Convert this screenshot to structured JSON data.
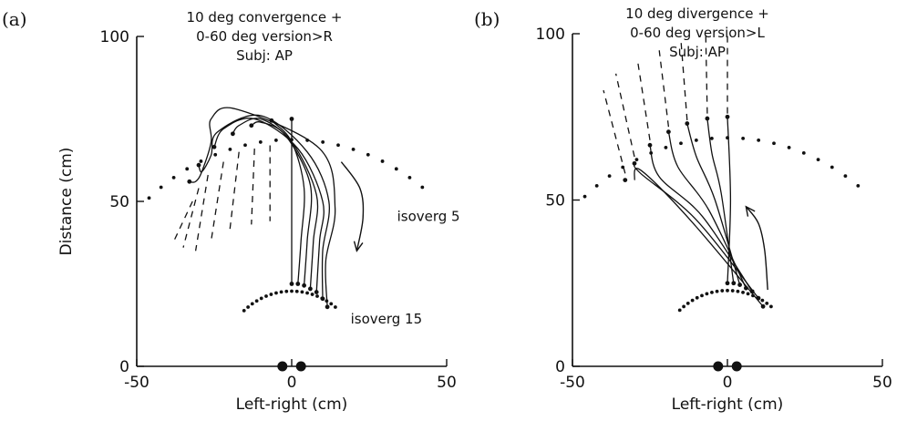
{
  "chart_data": [
    {
      "type": "line",
      "panel_label": "(a)",
      "title_lines": [
        "10 deg convergence +",
        "0-60 deg version>R",
        "Subj: AP"
      ],
      "xlabel": "Left-right (cm)",
      "ylabel": "Distance (cm)",
      "xlim": [
        -50,
        50
      ],
      "ylim": [
        0,
        100
      ],
      "xticks": [
        "-50",
        "0",
        "50"
      ],
      "yticks": [
        "0",
        "50",
        "100"
      ],
      "annotations": [
        {
          "text": "isoverg 5",
          "x": 34,
          "y": 44
        },
        {
          "text": "isoverg 15",
          "x": 19,
          "y": 13
        }
      ],
      "near_targets": [
        [
          0,
          25
        ],
        [
          2,
          25
        ],
        [
          4,
          24.5
        ],
        [
          6,
          23.5
        ],
        [
          8,
          22.5
        ],
        [
          10,
          20.5
        ],
        [
          11.5,
          18
        ]
      ],
      "far_targets": [
        [
          0,
          75
        ],
        [
          -6.5,
          74.5
        ],
        [
          -13,
          73
        ],
        [
          -19,
          70.5
        ],
        [
          -25,
          66.5
        ],
        [
          -30,
          61
        ],
        [
          -33,
          56
        ]
      ],
      "eyes": [
        [
          -3,
          0
        ],
        [
          3,
          0
        ]
      ],
      "arrow": {
        "points": [
          [
            16,
            62
          ],
          [
            22,
            54
          ],
          [
            23,
            45
          ],
          [
            21,
            35
          ]
        ]
      },
      "series": [
        {
          "points": [
            [
              0,
              25
            ],
            [
              0,
              75
            ]
          ]
        },
        {
          "points": [
            [
              2,
              25
            ],
            [
              3,
              38
            ],
            [
              4,
              54
            ],
            [
              0,
              68
            ],
            [
              -6.5,
              74.5
            ]
          ]
        },
        {
          "points": [
            [
              4,
              24.5
            ],
            [
              5,
              38
            ],
            [
              6,
              55
            ],
            [
              -2,
              70
            ],
            [
              -10,
              74
            ],
            [
              -13,
              73
            ]
          ]
        },
        {
          "points": [
            [
              6,
              23.5
            ],
            [
              7,
              38
            ],
            [
              8,
              52
            ],
            [
              0,
              68
            ],
            [
              -10,
              75
            ],
            [
              -17,
              73
            ],
            [
              -19,
              70.5
            ]
          ]
        },
        {
          "points": [
            [
              8,
              22.5
            ],
            [
              9,
              38
            ],
            [
              10,
              50
            ],
            [
              2,
              66
            ],
            [
              -12,
              75
            ],
            [
              -22,
              72
            ],
            [
              -25,
              66.5
            ]
          ]
        },
        {
          "points": [
            [
              10,
              20.5
            ],
            [
              10,
              35
            ],
            [
              12,
              50
            ],
            [
              5,
              65
            ],
            [
              -10,
              76
            ],
            [
              -24,
              71
            ],
            [
              -26,
              64
            ],
            [
              -29,
              59
            ],
            [
              -30,
              61
            ]
          ]
        },
        {
          "points": [
            [
              11.5,
              18
            ],
            [
              11,
              32
            ],
            [
              14,
              48
            ],
            [
              9,
              66
            ],
            [
              -18,
              78
            ],
            [
              -26,
              75
            ],
            [
              -26,
              68
            ],
            [
              -29,
              59
            ],
            [
              -31,
              56
            ],
            [
              -33,
              56
            ]
          ]
        }
      ],
      "dashed_lines": [
        {
          "from": [
            -7,
            67
          ],
          "to": [
            -7,
            44
          ]
        },
        {
          "from": [
            -12,
            66
          ],
          "to": [
            -13,
            43
          ]
        },
        {
          "from": [
            -17,
            65
          ],
          "to": [
            -20,
            41
          ]
        },
        {
          "from": [
            -22,
            62
          ],
          "to": [
            -26,
            38
          ]
        },
        {
          "from": [
            -27,
            58
          ],
          "to": [
            -31,
            35
          ]
        },
        {
          "from": [
            -30,
            54
          ],
          "to": [
            -35,
            36
          ]
        },
        {
          "from": [
            -32,
            50
          ],
          "to": [
            -38,
            38
          ]
        }
      ]
    },
    {
      "type": "line",
      "panel_label": "(b)",
      "title_lines": [
        "10 deg divergence +",
        "0-60 deg version>L",
        "Subj: AP"
      ],
      "xlabel": "Left-right (cm)",
      "ylabel": "",
      "xlim": [
        -50,
        50
      ],
      "ylim": [
        0,
        100
      ],
      "xticks": [
        "-50",
        "0",
        "50"
      ],
      "yticks": [
        "0",
        "50",
        "100"
      ],
      "annotations": [],
      "near_targets": [
        [
          0,
          25
        ],
        [
          2,
          25
        ],
        [
          4,
          24.5
        ],
        [
          6,
          23.5
        ],
        [
          8,
          22.5
        ],
        [
          10,
          20.5
        ],
        [
          11.5,
          18
        ]
      ],
      "far_targets": [
        [
          0,
          75
        ],
        [
          -6.5,
          74.5
        ],
        [
          -13,
          73
        ],
        [
          -19,
          70.5
        ],
        [
          -25,
          66.5
        ],
        [
          -30,
          61
        ],
        [
          -33,
          56
        ]
      ],
      "eyes": [
        [
          -3,
          0
        ],
        [
          3,
          0
        ]
      ],
      "arrow": {
        "points": [
          [
            13,
            23
          ],
          [
            12,
            35
          ],
          [
            10,
            43
          ],
          [
            6,
            48
          ]
        ]
      },
      "series": [
        {
          "points": [
            [
              0,
              25
            ],
            [
              1,
              50
            ],
            [
              0,
              75
            ]
          ]
        },
        {
          "points": [
            [
              2,
              25
            ],
            [
              -2,
              52
            ],
            [
              -5,
              64
            ],
            [
              -6.5,
              74.5
            ]
          ]
        },
        {
          "points": [
            [
              4,
              24.5
            ],
            [
              -4,
              50
            ],
            [
              -10,
              63
            ],
            [
              -13,
              73
            ]
          ]
        },
        {
          "points": [
            [
              6,
              23.5
            ],
            [
              -6,
              47
            ],
            [
              -16,
              60
            ],
            [
              -19,
              70.5
            ]
          ]
        },
        {
          "points": [
            [
              8,
              22.5
            ],
            [
              -8,
              45
            ],
            [
              -22,
              57
            ],
            [
              -25,
              66.5
            ]
          ]
        },
        {
          "points": [
            [
              10,
              20.5
            ],
            [
              -10,
              44
            ],
            [
              -28,
              58
            ],
            [
              -30,
              61
            ]
          ]
        },
        {
          "points": [
            [
              11.5,
              18
            ],
            [
              -12,
              44
            ],
            [
              -28,
              59
            ],
            [
              -30,
              56
            ]
          ]
        }
      ],
      "dashed_lines": [
        {
          "from": [
            0,
            76
          ],
          "to": [
            0,
            100
          ]
        },
        {
          "from": [
            -6.5,
            76
          ],
          "to": [
            -7,
            100
          ]
        },
        {
          "from": [
            -13,
            74
          ],
          "to": [
            -15,
            98
          ]
        },
        {
          "from": [
            -19,
            72
          ],
          "to": [
            -22,
            95
          ]
        },
        {
          "from": [
            -25,
            68
          ],
          "to": [
            -29,
            92
          ]
        },
        {
          "from": [
            -30,
            63
          ],
          "to": [
            -36,
            88
          ]
        },
        {
          "from": [
            -33,
            58
          ],
          "to": [
            -40,
            83
          ]
        }
      ]
    }
  ]
}
